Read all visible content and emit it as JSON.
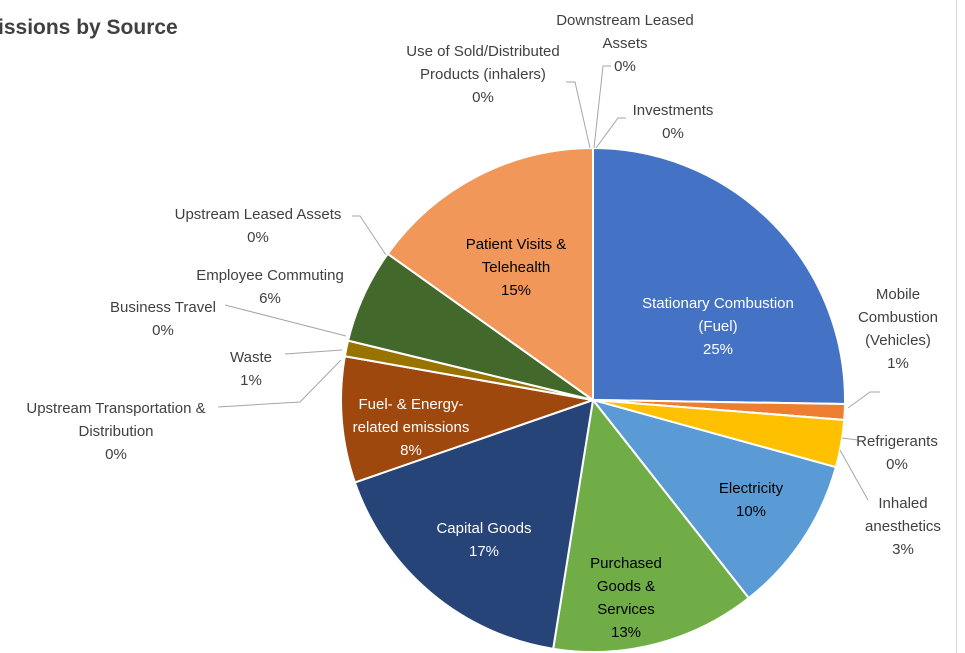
{
  "chart_data": {
    "type": "pie",
    "title": "issions by Source",
    "categories": [
      "Stationary Combustion (Fuel)",
      "Mobile Combustion (Vehicles)",
      "Refrigerants",
      "Inhaled anesthetics",
      "Electricity",
      "Purchased Goods & Services",
      "Capital Goods",
      "Fuel- & Energy-related emissions",
      "Upstream Transportation & Distribution",
      "Waste",
      "Business Travel",
      "Employee Commuting",
      "Upstream Leased Assets",
      "Patient Visits & Telehealth",
      "Use of Sold/Distributed Products (inhalers)",
      "Downstream Leased Assets",
      "Investments"
    ],
    "values": [
      25,
      1,
      0,
      3,
      10,
      13,
      17,
      8,
      0,
      1,
      0,
      6,
      0,
      15,
      0,
      0,
      0
    ],
    "value_labels": [
      "25%",
      "1%",
      "0%",
      "3%",
      "10%",
      "13%",
      "17%",
      "8%",
      "0%",
      "1%",
      "0%",
      "6%",
      "0%",
      "15%",
      "0%",
      "0%",
      "0%"
    ],
    "colors": [
      "#4472c4",
      "#ed7d31",
      "#a5a5a5",
      "#ffc000",
      "#5b9bd5",
      "#70ad47",
      "#264478",
      "#9e480e",
      "#636363",
      "#997300",
      "#255e91",
      "#43682b",
      "#698ed0",
      "#f1975a",
      "#b7b7b7",
      "#ffcd33",
      "#8cc168"
    ]
  }
}
